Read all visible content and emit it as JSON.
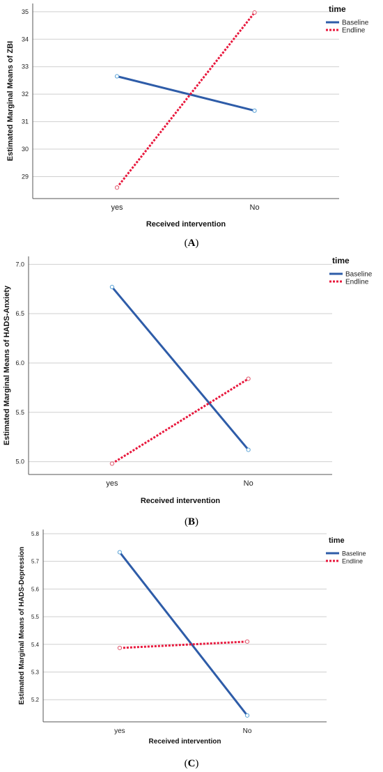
{
  "chart_data": [
    {
      "type": "line",
      "caption": "A",
      "xlabel": "Received intervention",
      "ylabel": "Estimated Marginal Means of ZBI",
      "categories": [
        "yes",
        "No"
      ],
      "ylim": [
        28.2,
        35.3
      ],
      "yticks": [
        "29",
        "30",
        "31",
        "32",
        "33",
        "34",
        "35"
      ],
      "legend_title": "time",
      "legend_position": "top-right",
      "grid": true,
      "series": [
        {
          "name": "Baseline",
          "values": [
            32.65,
            31.4
          ],
          "color": "#2e5ca8",
          "style": "solid"
        },
        {
          "name": "Endline",
          "values": [
            28.6,
            34.97
          ],
          "color": "#e8173c",
          "style": "dotted"
        }
      ]
    },
    {
      "type": "line",
      "caption": "B",
      "xlabel": "Received intervention",
      "ylabel": "Estimated Marginal Means of HADS-Anxiety",
      "categories": [
        "yes",
        "No"
      ],
      "ylim": [
        4.87,
        7.08
      ],
      "yticks": [
        "5.0",
        "5.5",
        "6.0",
        "6.5",
        "7.0"
      ],
      "legend_title": "time",
      "legend_position": "top-right",
      "grid": true,
      "series": [
        {
          "name": "Baseline",
          "values": [
            6.77,
            5.12
          ],
          "color": "#2e5ca8",
          "style": "solid"
        },
        {
          "name": "Endline",
          "values": [
            4.98,
            5.84
          ],
          "color": "#e8173c",
          "style": "dotted"
        }
      ]
    },
    {
      "type": "line",
      "caption": "C",
      "xlabel": "Received intervention",
      "ylabel": "Estimated Marginal Means of HADS-Depression",
      "categories": [
        "yes",
        "No"
      ],
      "ylim": [
        5.12,
        5.815
      ],
      "yticks": [
        "5.2",
        "5.3",
        "5.4",
        "5.5",
        "5.6",
        "5.7",
        "5.8"
      ],
      "legend_title": "time",
      "legend_position": "top-right",
      "grid": true,
      "series": [
        {
          "name": "Baseline",
          "values": [
            5.733,
            5.143
          ],
          "color": "#2e5ca8",
          "style": "solid"
        },
        {
          "name": "Endline",
          "values": [
            5.387,
            5.41
          ],
          "color": "#e8173c",
          "style": "dotted"
        }
      ]
    }
  ]
}
